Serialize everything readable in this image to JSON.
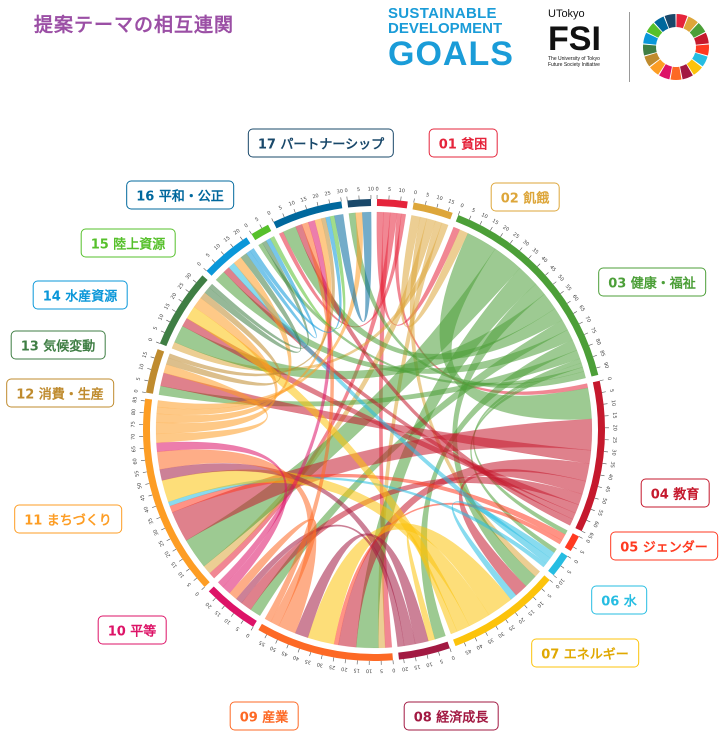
{
  "chart_data": {
    "type": "chord",
    "title": "提案テーマの相互連関",
    "groups": [
      {
        "name": "01 貧困",
        "color": "#e5243b"
      },
      {
        "name": "02 飢餓",
        "color": "#dda63a"
      },
      {
        "name": "03 健康・福祉",
        "color": "#4c9f38"
      },
      {
        "name": "04 教育",
        "color": "#c5192d"
      },
      {
        "name": "05 ジェンダー",
        "color": "#ff3a21"
      },
      {
        "name": "06 水",
        "color": "#26bde2"
      },
      {
        "name": "07 エネルギー",
        "color": "#fcc30b"
      },
      {
        "name": "08 経済成長",
        "color": "#a21942"
      },
      {
        "name": "09 産業",
        "color": "#fd6925"
      },
      {
        "name": "10 平等",
        "color": "#dd1367"
      },
      {
        "name": "11 まちづくり",
        "color": "#fd9d24"
      },
      {
        "name": "12 消費・生産",
        "color": "#bf8b2e"
      },
      {
        "name": "13 気候変動",
        "color": "#3f7e44"
      },
      {
        "name": "14 水産資源",
        "color": "#0a97d9"
      },
      {
        "name": "15 陸上資源",
        "color": "#56c02b"
      },
      {
        "name": "16 平和・公正",
        "color": "#00689d"
      },
      {
        "name": "17 パートナーシップ",
        "color": "#19486a"
      }
    ],
    "chords": [
      [
        0,
        2,
        3
      ],
      [
        0,
        8,
        3
      ],
      [
        0,
        10,
        3
      ],
      [
        0,
        3,
        2
      ],
      [
        0,
        15,
        2
      ],
      [
        1,
        2,
        4
      ],
      [
        1,
        6,
        3
      ],
      [
        1,
        10,
        4
      ],
      [
        1,
        8,
        3
      ],
      [
        1,
        12,
        3
      ],
      [
        2,
        3,
        14
      ],
      [
        2,
        10,
        14
      ],
      [
        2,
        8,
        10
      ],
      [
        2,
        6,
        6
      ],
      [
        2,
        12,
        8
      ],
      [
        2,
        15,
        6
      ],
      [
        2,
        9,
        5
      ],
      [
        2,
        13,
        5
      ],
      [
        2,
        7,
        5
      ],
      [
        2,
        11,
        4
      ],
      [
        2,
        4,
        2
      ],
      [
        2,
        5,
        2
      ],
      [
        2,
        14,
        2
      ],
      [
        2,
        16,
        3
      ],
      [
        3,
        10,
        14
      ],
      [
        3,
        11,
        6
      ],
      [
        3,
        8,
        8
      ],
      [
        3,
        6,
        6
      ],
      [
        3,
        9,
        5
      ],
      [
        3,
        12,
        4
      ],
      [
        3,
        13,
        3
      ],
      [
        3,
        15,
        3
      ],
      [
        4,
        10,
        3
      ],
      [
        4,
        8,
        2
      ],
      [
        5,
        6,
        3
      ],
      [
        5,
        13,
        3
      ],
      [
        5,
        10,
        2
      ],
      [
        6,
        8,
        12
      ],
      [
        6,
        10,
        10
      ],
      [
        6,
        12,
        6
      ],
      [
        6,
        7,
        3
      ],
      [
        7,
        8,
        6
      ],
      [
        7,
        10,
        5
      ],
      [
        7,
        9,
        3
      ],
      [
        8,
        10,
        8
      ],
      [
        8,
        9,
        4
      ],
      [
        8,
        15,
        3
      ],
      [
        9,
        10,
        4
      ],
      [
        9,
        15,
        3
      ],
      [
        10,
        11,
        4
      ],
      [
        10,
        12,
        5
      ],
      [
        10,
        13,
        4
      ],
      [
        10,
        15,
        3
      ],
      [
        10,
        16,
        3
      ],
      [
        11,
        12,
        3
      ],
      [
        11,
        15,
        2
      ],
      [
        12,
        13,
        3
      ],
      [
        12,
        14,
        2
      ],
      [
        13,
        14,
        2
      ],
      [
        13,
        15,
        2
      ],
      [
        14,
        15,
        2
      ],
      [
        15,
        16,
        4
      ]
    ],
    "arc_ticks": [
      0,
      5,
      10,
      15,
      20,
      25,
      30,
      35,
      40,
      45,
      50,
      55,
      60,
      65,
      70,
      75,
      80,
      85,
      90
    ]
  },
  "logos": {
    "sdg": [
      "SUSTAINABLE",
      "DEVELOPMENT",
      "GOALS"
    ],
    "utokyo": "UTokyo",
    "fsi": "FSI",
    "fsi_sub": [
      "The University of Tokyo",
      "Future Society Initiative"
    ]
  }
}
